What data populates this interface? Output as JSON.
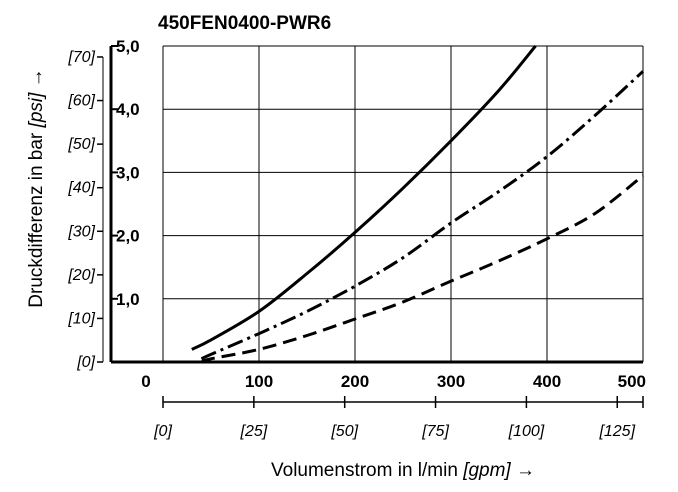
{
  "chart_data": {
    "type": "line",
    "title": "450FEN0400-PWR6",
    "xlabel": "Volumenstrom in l/min",
    "xlabel_unit": "[gpm]",
    "ylabel": "Druckdifferenz in bar",
    "ylabel_unit": "[psi]",
    "arrow": "→",
    "xlim": [
      0,
      500
    ],
    "ylim": [
      0,
      5
    ],
    "grid": true,
    "x_ticks": [
      "0",
      "100",
      "200",
      "300",
      "400",
      "500"
    ],
    "y_ticks": [
      "1,0",
      "2,0",
      "3,0",
      "4,0",
      "5,0"
    ],
    "x2_ticks": [
      "[0]",
      "[25]",
      "[50]",
      "[75]",
      "[100]",
      "[125]"
    ],
    "x2_values": [
      0,
      25,
      50,
      75,
      100,
      125
    ],
    "y2_ticks": [
      "[0]",
      "[10]",
      "[20]",
      "[30]",
      "[40]",
      "[50]",
      "[60]",
      "[70]"
    ],
    "y2_values": [
      0,
      10,
      20,
      30,
      40,
      50,
      60,
      70
    ],
    "series": [
      {
        "style": "solid",
        "x": [
          30,
          50,
          100,
          150,
          200,
          250,
          300,
          350,
          388
        ],
        "y": [
          0.2,
          0.35,
          0.8,
          1.4,
          2.05,
          2.75,
          3.5,
          4.3,
          5.0
        ]
      },
      {
        "style": "dash-dot",
        "x": [
          40,
          50,
          100,
          150,
          200,
          250,
          300,
          350,
          400,
          450,
          500
        ],
        "y": [
          0.05,
          0.12,
          0.45,
          0.8,
          1.2,
          1.65,
          2.2,
          2.7,
          3.25,
          3.9,
          4.6
        ]
      },
      {
        "style": "dashed",
        "x": [
          40,
          50,
          100,
          150,
          200,
          250,
          300,
          350,
          400,
          450,
          500
        ],
        "y": [
          0.0,
          0.05,
          0.2,
          0.42,
          0.68,
          0.95,
          1.28,
          1.6,
          1.95,
          2.35,
          2.95
        ]
      }
    ]
  }
}
